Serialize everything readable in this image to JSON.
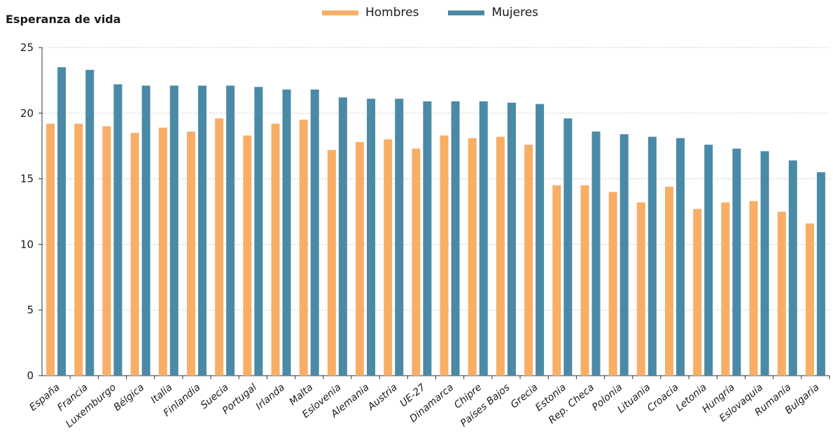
{
  "chart_data": {
    "type": "bar",
    "ylabel": "Esperanza de vida",
    "ylim": [
      0,
      25
    ],
    "yticks": [
      0,
      5,
      10,
      15,
      20,
      25
    ],
    "grid": true,
    "legend_position": "top-center",
    "categories": [
      "España",
      "Francia",
      "Luxemburgo",
      "Bélgica",
      "Italia",
      "Finlandia",
      "Suecia",
      "Portugal",
      "Irlanda",
      "Malta",
      "Eslovenia",
      "Alemania",
      "Austria",
      "UE-27",
      "Dinamarca",
      "Chipre",
      "Países Bajos",
      "Grecia",
      "Estonia",
      "Rep. Checa",
      "Polonia",
      "Lituania",
      "Croacia",
      "Letonia",
      "Hungría",
      "Eslovaquia",
      "Rumanía",
      "Bulgaria"
    ],
    "series": [
      {
        "name": "Hombres",
        "color": "#F9AE66",
        "values": [
          19.2,
          19.2,
          19.0,
          18.5,
          18.9,
          18.6,
          19.6,
          18.3,
          19.2,
          19.5,
          17.2,
          17.8,
          18.0,
          17.3,
          18.3,
          18.1,
          18.2,
          17.6,
          14.5,
          14.5,
          14.0,
          13.2,
          14.4,
          12.7,
          13.2,
          13.3,
          12.5,
          11.6
        ]
      },
      {
        "name": "Mujeres",
        "color": "#4A8AA6",
        "values": [
          23.5,
          23.3,
          22.2,
          22.1,
          22.1,
          22.1,
          22.1,
          22.0,
          21.8,
          21.8,
          21.2,
          21.1,
          21.1,
          20.9,
          20.9,
          20.9,
          20.8,
          20.7,
          19.6,
          18.6,
          18.4,
          18.2,
          18.1,
          17.6,
          17.3,
          17.1,
          16.4,
          15.5
        ]
      }
    ]
  }
}
